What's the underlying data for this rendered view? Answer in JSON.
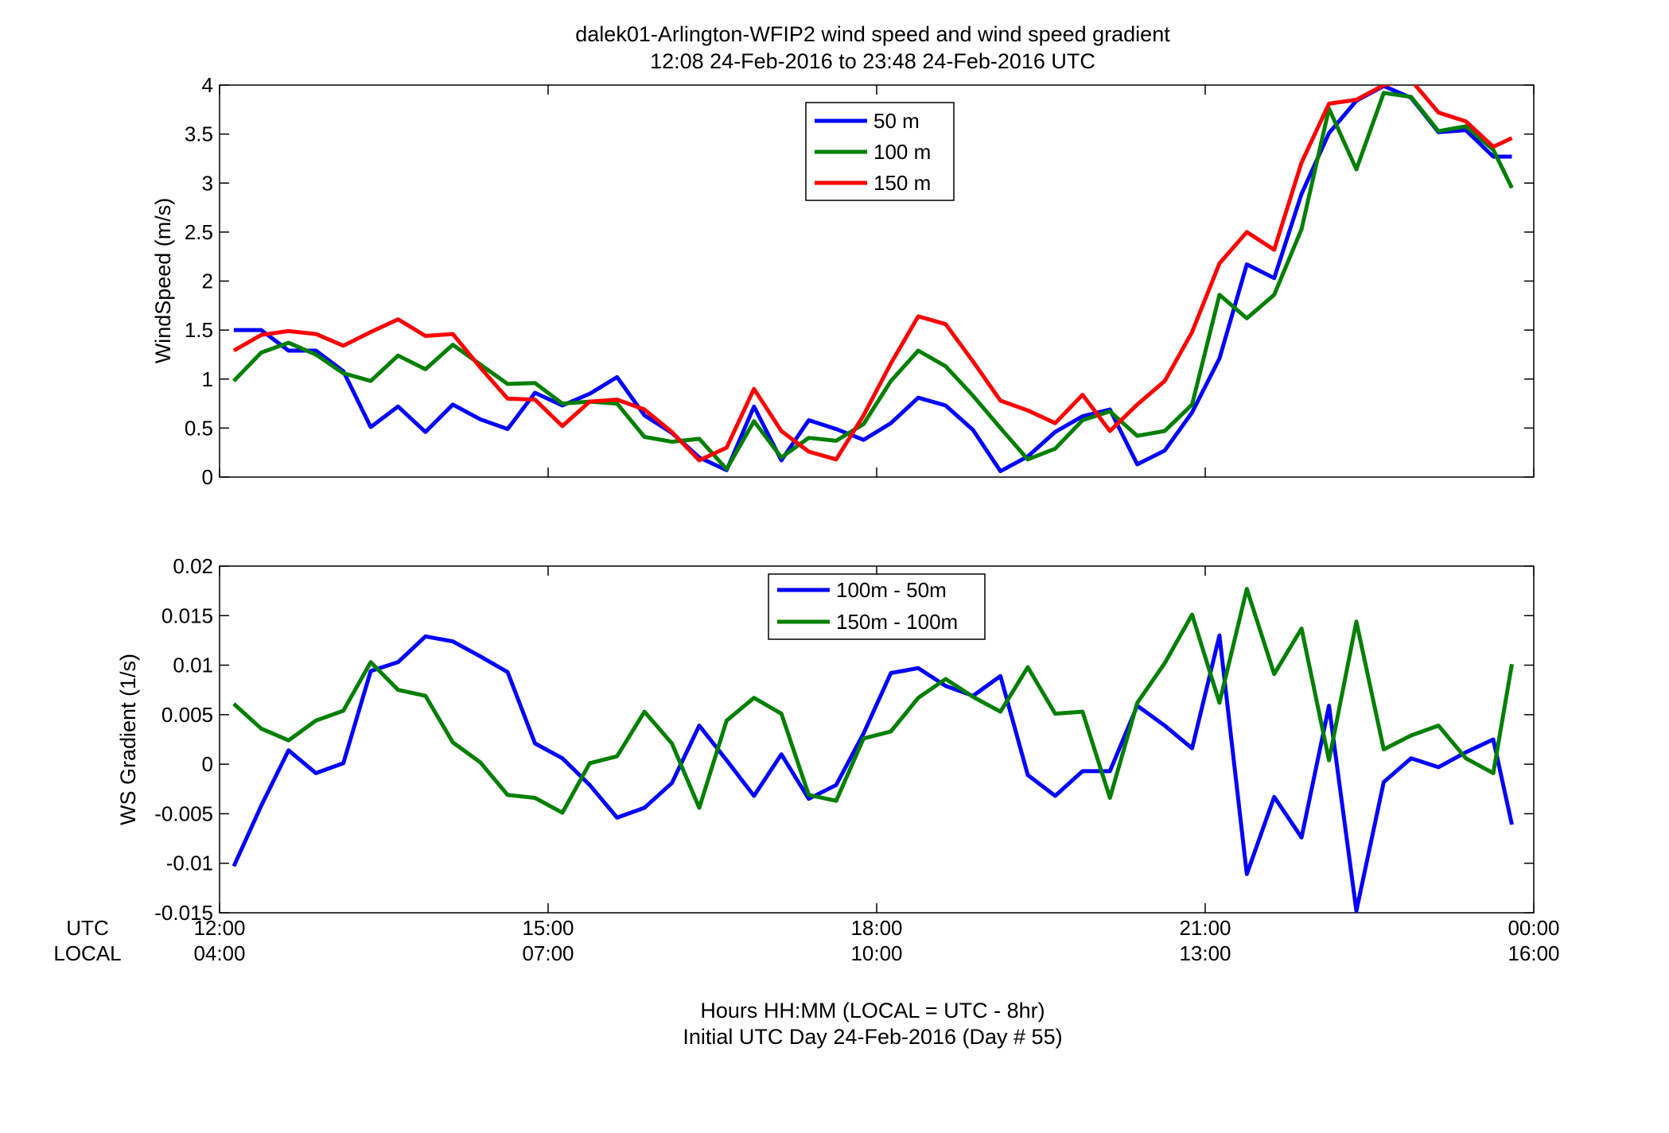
{
  "figure": {
    "title_line1": "dalek01-Arlington-WFIP2  wind speed and wind speed gradient",
    "title_line2": "12:08 24-Feb-2016 to 23:48 24-Feb-2016  UTC",
    "xlabel_line1": "Hours HH:MM  (LOCAL = UTC - 8hr)",
    "xlabel_line2": "Initial UTC Day 24-Feb-2016 (Day # 55)",
    "utc_row_label": "UTC",
    "local_row_label": "LOCAL",
    "utc_ticks": [
      "12:00",
      "15:00",
      "18:00",
      "21:00",
      "00:00"
    ],
    "local_ticks": [
      "04:00",
      "07:00",
      "10:00",
      "13:00",
      "16:00"
    ]
  },
  "colors": {
    "blue": "#0000ff",
    "green": "#007f00",
    "red": "#ff0000"
  },
  "chart_data": [
    {
      "type": "line",
      "ylabel": "WindSpeed (m/s)",
      "xlim": [
        12,
        24
      ],
      "ylim": [
        0,
        4
      ],
      "yticks": [
        0,
        0.5,
        1,
        1.5,
        2,
        2.5,
        3,
        3.5,
        4
      ],
      "ytick_labels": [
        "0",
        "0.5",
        "1",
        "1.5",
        "2",
        "2.5",
        "3",
        "3.5",
        "4"
      ],
      "grid": false,
      "legend_position": "top-center",
      "x": [
        12.13,
        12.38,
        12.63,
        12.88,
        13.13,
        13.38,
        13.63,
        13.88,
        14.13,
        14.38,
        14.63,
        14.88,
        15.13,
        15.38,
        15.63,
        15.88,
        16.13,
        16.38,
        16.63,
        16.88,
        17.13,
        17.38,
        17.63,
        17.88,
        18.13,
        18.38,
        18.63,
        18.88,
        19.13,
        19.38,
        19.63,
        19.88,
        20.13,
        20.38,
        20.63,
        20.88,
        21.13,
        21.38,
        21.63,
        21.88,
        22.13,
        22.38,
        22.63,
        22.88,
        23.13,
        23.38,
        23.63,
        23.8
      ],
      "series": [
        {
          "name": "50 m",
          "color": "blue",
          "values": [
            1.5,
            1.5,
            1.29,
            1.29,
            1.08,
            0.51,
            0.72,
            0.46,
            0.74,
            0.59,
            0.49,
            0.86,
            0.73,
            0.85,
            1.02,
            0.63,
            0.45,
            0.2,
            0.07,
            0.72,
            0.17,
            0.58,
            0.49,
            0.38,
            0.55,
            0.81,
            0.73,
            0.48,
            0.06,
            0.21,
            0.46,
            0.62,
            0.69,
            0.13,
            0.27,
            0.66,
            1.21,
            2.17,
            2.03,
            2.89,
            3.51,
            3.84,
            3.99,
            3.87,
            3.52,
            3.54,
            3.27,
            3.27
          ]
        },
        {
          "name": "100 m",
          "color": "green",
          "values": [
            0.98,
            1.27,
            1.37,
            1.25,
            1.06,
            0.98,
            1.24,
            1.1,
            1.35,
            1.15,
            0.95,
            0.96,
            0.75,
            0.77,
            0.75,
            0.41,
            0.36,
            0.39,
            0.08,
            0.57,
            0.2,
            0.4,
            0.37,
            0.54,
            0.98,
            1.29,
            1.13,
            0.83,
            0.5,
            0.18,
            0.29,
            0.58,
            0.67,
            0.42,
            0.47,
            0.74,
            1.86,
            1.62,
            1.86,
            2.53,
            3.76,
            3.14,
            3.92,
            3.88,
            3.53,
            3.58,
            3.34,
            2.95
          ]
        },
        {
          "name": "150 m",
          "color": "red",
          "values": [
            1.29,
            1.45,
            1.49,
            1.46,
            1.34,
            1.48,
            1.61,
            1.44,
            1.46,
            1.12,
            0.8,
            0.79,
            0.52,
            0.77,
            0.79,
            0.69,
            0.46,
            0.17,
            0.3,
            0.9,
            0.47,
            0.26,
            0.18,
            0.63,
            1.16,
            1.64,
            1.56,
            1.18,
            0.78,
            0.68,
            0.55,
            0.84,
            0.47,
            0.74,
            0.98,
            1.48,
            2.18,
            2.5,
            2.32,
            3.21,
            3.81,
            3.85,
            4.0,
            4.05,
            3.72,
            3.63,
            3.37,
            3.46
          ]
        }
      ]
    },
    {
      "type": "line",
      "ylabel": "WS Gradient (1/s)",
      "xlim": [
        12,
        24
      ],
      "ylim": [
        -0.015,
        0.02
      ],
      "yticks": [
        -0.015,
        -0.01,
        -0.005,
        0,
        0.005,
        0.01,
        0.015,
        0.02
      ],
      "ytick_labels": [
        "-0.015",
        "-0.01",
        "-0.005",
        "0",
        "0.005",
        "0.01",
        "0.015",
        "0.02"
      ],
      "grid": false,
      "legend_position": "top-center",
      "x": [
        12.13,
        12.38,
        12.63,
        12.88,
        13.13,
        13.38,
        13.63,
        13.88,
        14.13,
        14.38,
        14.63,
        14.88,
        15.13,
        15.38,
        15.63,
        15.88,
        16.13,
        16.38,
        16.63,
        16.88,
        17.13,
        17.38,
        17.63,
        17.88,
        18.13,
        18.38,
        18.63,
        18.88,
        19.13,
        19.38,
        19.63,
        19.88,
        20.13,
        20.38,
        20.63,
        20.88,
        21.13,
        21.38,
        21.63,
        21.88,
        22.13,
        22.38,
        22.63,
        22.88,
        23.13,
        23.38,
        23.63,
        23.8
      ],
      "series": [
        {
          "name": "100m - 50m",
          "color": "blue",
          "values": [
            -0.0103,
            -0.0042,
            0.0014,
            -0.0009,
            0.0001,
            0.0094,
            0.0103,
            0.0129,
            0.0124,
            0.0109,
            0.0093,
            0.0021,
            0.0006,
            -0.0021,
            -0.0054,
            -0.0044,
            -0.0019,
            0.0039,
            0.0004,
            -0.0032,
            0.001,
            -0.0035,
            -0.0021,
            0.0031,
            0.0092,
            0.0097,
            0.0079,
            0.0069,
            0.0089,
            -0.0011,
            -0.0032,
            -0.0007,
            -0.0007,
            0.0059,
            0.0039,
            0.0016,
            0.013,
            -0.0111,
            -0.0033,
            -0.0074,
            0.0059,
            -0.0148,
            -0.0018,
            0.0006,
            -0.0003,
            0.0012,
            0.0025,
            -0.0061
          ]
        },
        {
          "name": "150m - 100m",
          "color": "green",
          "values": [
            0.0061,
            0.0036,
            0.0024,
            0.0044,
            0.0054,
            0.0103,
            0.0075,
            0.0069,
            0.0022,
            0.0002,
            -0.0031,
            -0.0034,
            -0.0049,
            0.0001,
            0.0008,
            0.0053,
            0.0021,
            -0.0044,
            0.0044,
            0.0067,
            0.0051,
            -0.0031,
            -0.0037,
            0.0026,
            0.0033,
            0.0067,
            0.0086,
            0.0068,
            0.0053,
            0.0098,
            0.0051,
            0.0053,
            -0.0034,
            0.0062,
            0.0102,
            0.0151,
            0.0062,
            0.0177,
            0.0091,
            0.0137,
            0.0004,
            0.0144,
            0.0015,
            0.0029,
            0.0039,
            0.0006,
            -0.0009,
            0.0101
          ]
        }
      ]
    }
  ]
}
